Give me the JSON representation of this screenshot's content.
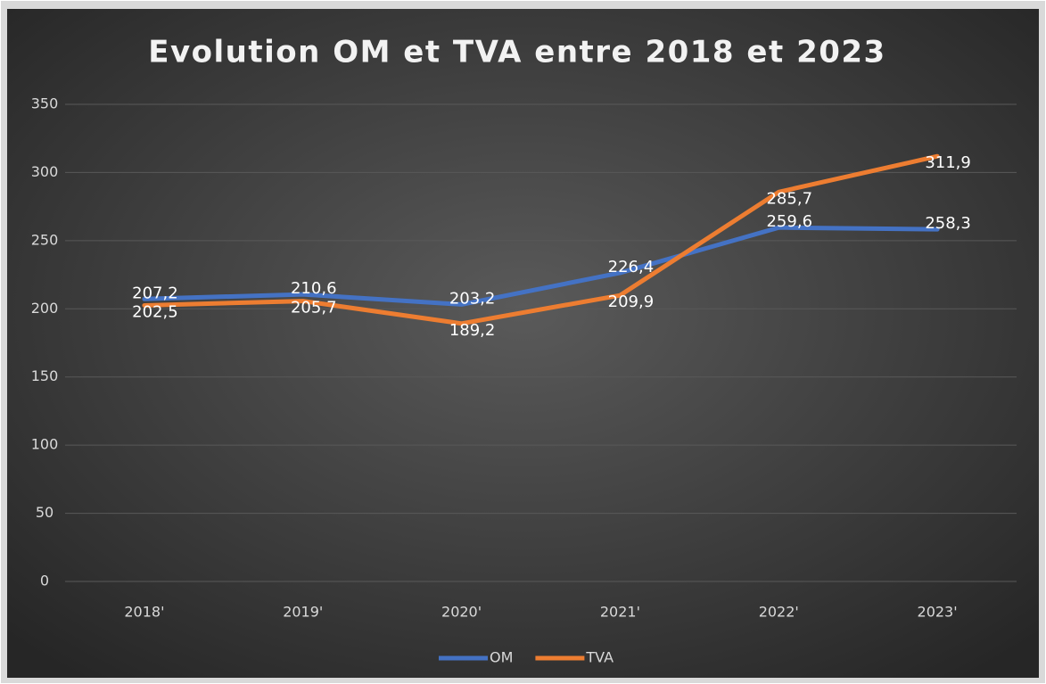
{
  "chart_data": {
    "type": "line",
    "title": "Evolution OM et TVA entre 2018 et 2023",
    "categories": [
      "2018'",
      "2019'",
      "2020'",
      "2021'",
      "2022'",
      "2023'"
    ],
    "series": [
      {
        "name": "OM",
        "color": "#4472c4",
        "values": [
          207.2,
          210.6,
          203.2,
          226.4,
          259.6,
          258.3
        ],
        "value_labels": [
          "207,2",
          "210,6",
          "203,2",
          "226,4",
          "259,6",
          "258,3"
        ]
      },
      {
        "name": "TVA",
        "color": "#ed7d31",
        "values": [
          202.5,
          205.7,
          189.2,
          209.9,
          285.7,
          311.9
        ],
        "value_labels": [
          "202,5",
          "205,7",
          "189,2",
          "209,9",
          "285,7",
          "311,9"
        ]
      }
    ],
    "ylim": [
      0,
      350
    ],
    "yticks": [
      0,
      50,
      100,
      150,
      200,
      250,
      300,
      350
    ],
    "grid": true,
    "legend": "bottom"
  }
}
